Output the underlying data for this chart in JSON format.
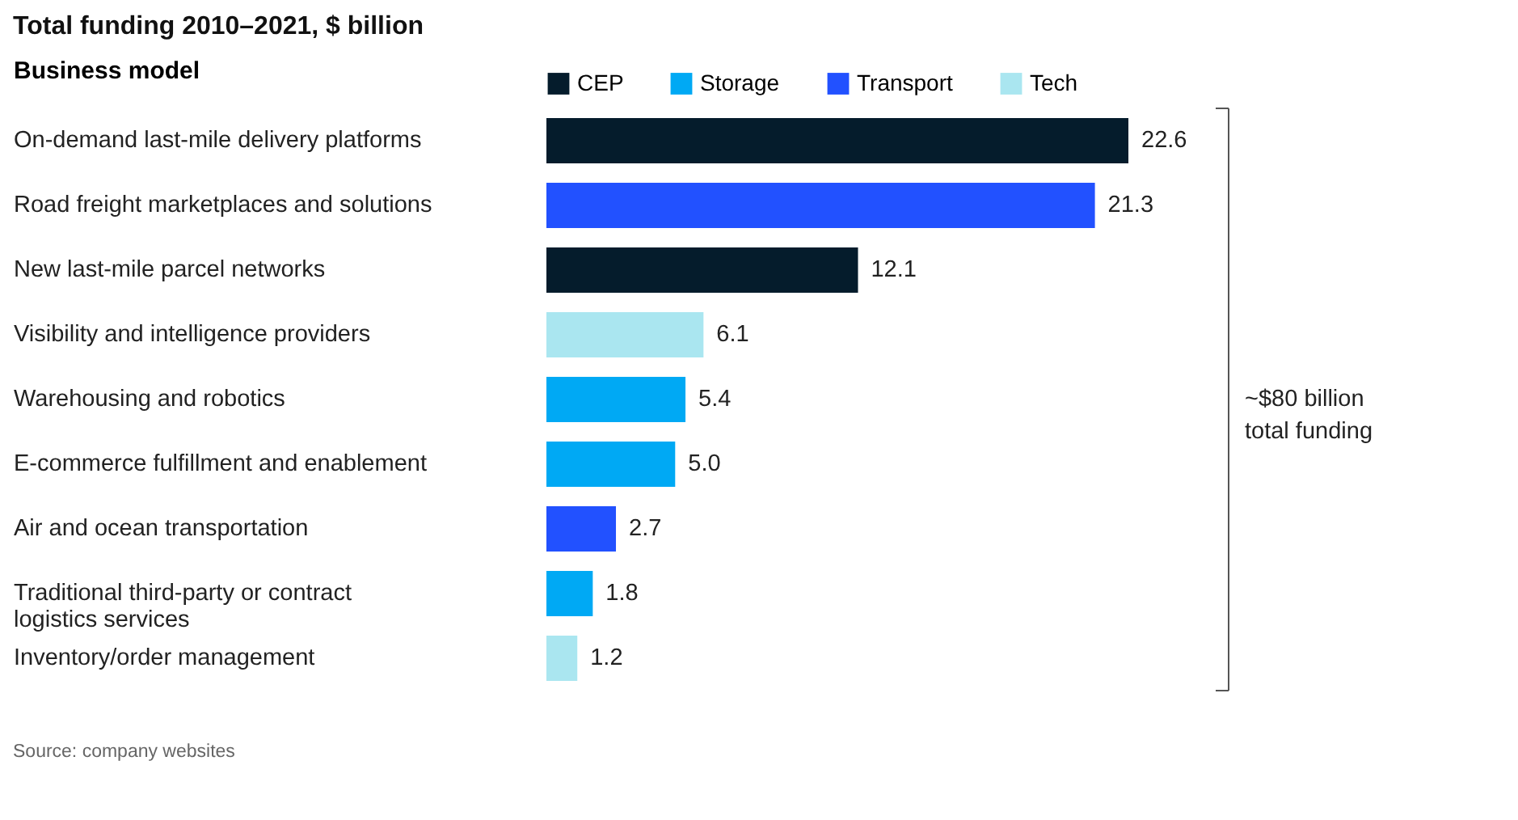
{
  "chart_data": {
    "type": "bar",
    "orientation": "horizontal",
    "title": "Total funding 2010–2021, $ billion",
    "ylabel": "Business model",
    "categories": [
      "On-demand last-mile delivery platforms",
      "Road freight marketplaces and solutions",
      "New last-mile parcel networks",
      "Visibility and intelligence providers",
      "Warehousing and robotics",
      "E-commerce fulfillment and enablement",
      "Air and ocean transportation",
      "Traditional third-party or contract logistics services",
      "Inventory/order management"
    ],
    "series": [
      {
        "name": "CEP",
        "color": "#051c2c",
        "values": [
          22.6,
          null,
          12.1,
          null,
          null,
          null,
          null,
          null,
          null
        ],
        "value_labels": [
          "22.6",
          null,
          "12.1",
          null,
          null,
          null,
          null,
          null,
          null
        ]
      },
      {
        "name": "Storage",
        "color": "#00a9f4",
        "values": [
          null,
          null,
          null,
          null,
          5.4,
          5.0,
          null,
          1.8,
          null
        ],
        "value_labels": [
          null,
          null,
          null,
          null,
          "5.4",
          "5.0",
          null,
          "1.8",
          null
        ]
      },
      {
        "name": "Transport",
        "color": "#2251ff",
        "values": [
          null,
          21.3,
          null,
          null,
          null,
          null,
          2.7,
          null,
          null
        ],
        "value_labels": [
          null,
          "21.3",
          null,
          null,
          null,
          null,
          "2.7",
          null,
          null
        ]
      },
      {
        "name": "Tech",
        "color": "#aae6f0",
        "values": [
          null,
          null,
          null,
          6.1,
          null,
          null,
          null,
          null,
          1.2
        ],
        "value_labels": [
          null,
          null,
          null,
          "6.1",
          null,
          null,
          null,
          null,
          "1.2"
        ]
      }
    ],
    "legend": "top",
    "annotations": [
      "~$80 billion total funding",
      "Source: company websites"
    ]
  }
}
